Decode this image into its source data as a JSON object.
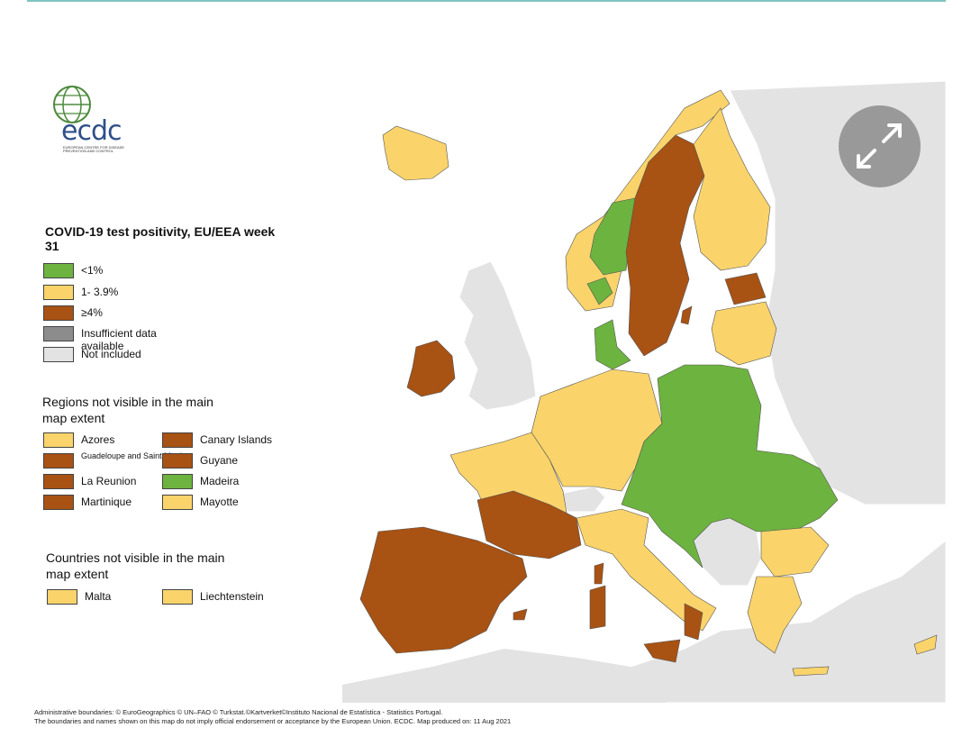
{
  "colors": {
    "green": "#6db33f",
    "yellow": "#fad46b",
    "brown": "#a85213",
    "grey": "#8c8c8c",
    "light_grey": "#e3e3e3",
    "sea": "#ffffff"
  },
  "logo": {
    "text": "ecdc",
    "subtitle": "EUROPEAN CENTRE FOR DISEASE PREVENTION AND CONTROL"
  },
  "legend": {
    "title": "COVID-19 test positivity, EU/EEA week 31",
    "items": [
      {
        "label": "<1%",
        "color": "#6db33f"
      },
      {
        "label": "1- 3.9%",
        "color": "#fad46b"
      },
      {
        "label": "≥4%",
        "color": "#a85213"
      },
      {
        "label": "Insufficient data available",
        "color": "#8c8c8c"
      },
      {
        "label": "Not included",
        "color": "#e3e3e3"
      }
    ]
  },
  "regions_section": {
    "title": "Regions not visible in the main map extent",
    "items": [
      {
        "label": "Azores",
        "color": "#fad46b"
      },
      {
        "label": "Canary Islands",
        "color": "#a85213"
      },
      {
        "label": "Guadeloupe and Saint Martin",
        "color": "#a85213"
      },
      {
        "label": "Guyane",
        "color": "#a85213"
      },
      {
        "label": "La Reunion",
        "color": "#a85213"
      },
      {
        "label": "Madeira",
        "color": "#6db33f"
      },
      {
        "label": "Martinique",
        "color": "#a85213"
      },
      {
        "label": "Mayotte",
        "color": "#fad46b"
      }
    ]
  },
  "countries_section": {
    "title": "Countries not visible in the main map extent",
    "items": [
      {
        "label": "Malta",
        "color": "#fad46b"
      },
      {
        "label": "Liechtenstein",
        "color": "#fad46b"
      }
    ]
  },
  "footer": {
    "line1": "Administrative boundaries: © EuroGeographics © UN–FAO © Turkstat.©Kartverket©Instituto Nacional de Estatística - Statistics Portugal.",
    "line2": "The boundaries and names shown on this map do not imply official endorsement or acceptance by the European Union. ECDC. Map produced on: 11 Aug 2021"
  },
  "expand_button_icon": "expand-arrows-icon"
}
